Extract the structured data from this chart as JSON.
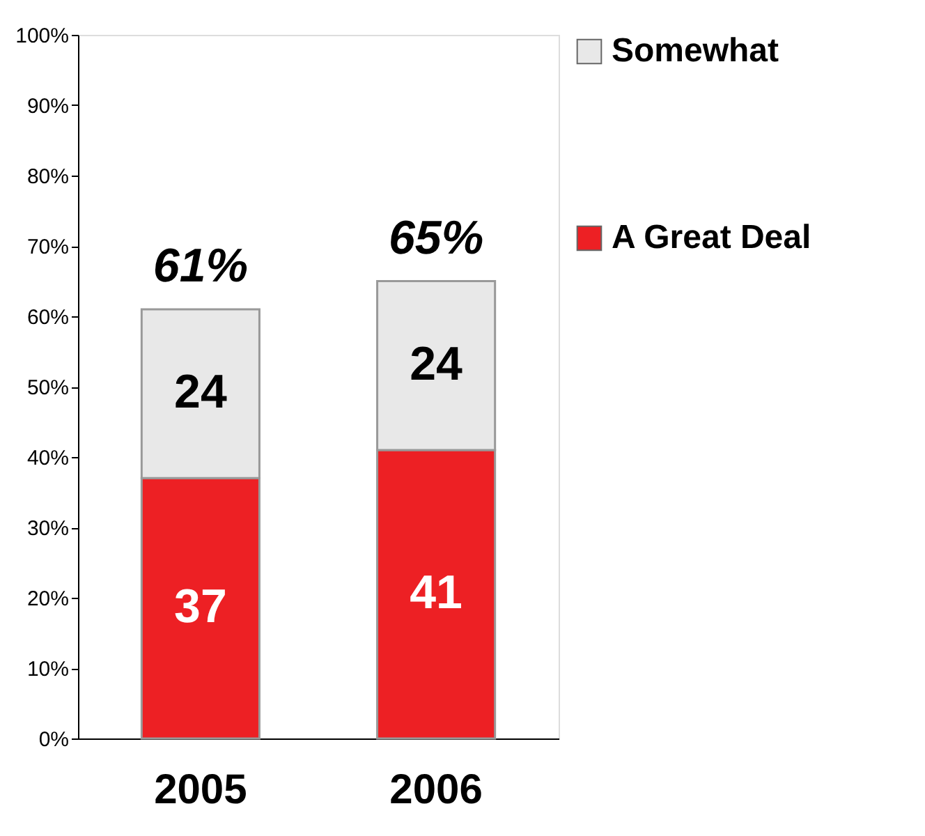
{
  "chart_data": {
    "type": "bar",
    "stacked": true,
    "categories": [
      "2005",
      "2006"
    ],
    "series": [
      {
        "name": "A Great Deal",
        "color": "#ed2024",
        "values": [
          37,
          41
        ]
      },
      {
        "name": "Somewhat",
        "color": "#e8e8e8",
        "values": [
          24,
          24
        ]
      }
    ],
    "totals": [
      "61%",
      "65%"
    ],
    "data_labels": true,
    "ylim": [
      0,
      100
    ],
    "yticks": [
      {
        "value": 0,
        "label": "0%"
      },
      {
        "value": 10,
        "label": "10%"
      },
      {
        "value": 20,
        "label": "20%"
      },
      {
        "value": 30,
        "label": "30%"
      },
      {
        "value": 40,
        "label": "40%"
      },
      {
        "value": 50,
        "label": "50%"
      },
      {
        "value": 60,
        "label": "60%"
      },
      {
        "value": 70,
        "label": "70%"
      },
      {
        "value": 80,
        "label": "80%"
      },
      {
        "value": 90,
        "label": "90%"
      },
      {
        "value": 100,
        "label": "100%"
      }
    ],
    "grid": false,
    "legend": "right"
  }
}
